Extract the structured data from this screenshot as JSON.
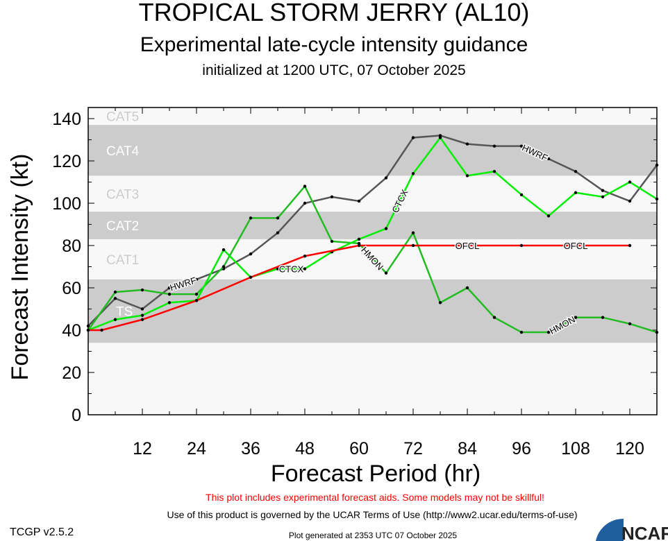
{
  "chart_data": {
    "type": "line",
    "title": "TROPICAL STORM JERRY (AL10)",
    "subtitle": "Experimental late-cycle intensity guidance",
    "init": "initialized at 1200 UTC, 07 October 2025",
    "xlabel": "Forecast Period (hr)",
    "ylabel": "Forecast Intensity (kt)",
    "xlim": [
      0,
      126
    ],
    "ylim": [
      0,
      140
    ],
    "xticks": [
      12,
      24,
      36,
      48,
      60,
      72,
      84,
      96,
      108,
      120
    ],
    "yticks": [
      0,
      20,
      40,
      60,
      80,
      100,
      120,
      140
    ],
    "bands": [
      {
        "label": "TS",
        "min": 34,
        "max": 64,
        "shade": true
      },
      {
        "label": "CAT1",
        "min": 64,
        "max": 83,
        "shade": false
      },
      {
        "label": "CAT2",
        "min": 83,
        "max": 96,
        "shade": true
      },
      {
        "label": "CAT3",
        "min": 96,
        "max": 113,
        "shade": false
      },
      {
        "label": "CAT4",
        "min": 113,
        "max": 137,
        "shade": true
      },
      {
        "label": "CAT5",
        "min": 137,
        "max": 140,
        "shade": false
      }
    ],
    "series": [
      {
        "name": "HWRF",
        "color": "#555555",
        "x": [
          0,
          6,
          12,
          18,
          24,
          30,
          36,
          42,
          48,
          54,
          60,
          66,
          72,
          78,
          84,
          90,
          96,
          102,
          108,
          114,
          120,
          126
        ],
        "values": [
          42,
          55,
          50,
          60,
          64,
          69,
          76,
          86,
          100,
          103,
          101,
          112,
          131,
          132,
          128,
          127,
          127,
          121,
          115,
          106,
          101,
          118
        ]
      },
      {
        "name": "HMON",
        "color": "#22bb22",
        "x": [
          0,
          6,
          12,
          18,
          24,
          30,
          36,
          42,
          48,
          54,
          60,
          66,
          72,
          78,
          84,
          90,
          96,
          102,
          108,
          114,
          120,
          126
        ],
        "values": [
          40,
          58,
          59,
          57,
          57,
          70,
          93,
          93,
          108,
          82,
          81,
          67,
          86,
          53,
          60,
          46,
          39,
          39,
          46,
          46,
          43,
          39
        ]
      },
      {
        "name": "CTCX",
        "color": "#00ee00",
        "x": [
          0,
          6,
          12,
          18,
          24,
          30,
          36,
          42,
          48,
          54,
          60,
          66,
          72,
          78,
          84,
          90,
          96,
          102,
          108,
          114,
          120,
          126
        ],
        "values": [
          40,
          45,
          47,
          53,
          54,
          78,
          65,
          69,
          69,
          77,
          83,
          88,
          114,
          131,
          113,
          115,
          104,
          94,
          105,
          103,
          110,
          102
        ]
      },
      {
        "name": "OFCL",
        "color": "#ff0000",
        "x": [
          0,
          3,
          12,
          24,
          36,
          48,
          60,
          72,
          96,
          120
        ],
        "values": [
          40,
          40,
          45,
          54,
          65,
          75,
          80,
          80,
          80,
          80
        ]
      }
    ]
  },
  "footer": {
    "warning": "This plot includes experimental forecast aids. Some models may not be skillful!",
    "terms": "Use of this product is governed by the UCAR Terms of Use (http://www2.ucar.edu/terms-of-use)",
    "version": "TCGP v2.5.2",
    "generated": "Plot generated at 2353 UTC   07 October 2025",
    "logo": "NCAR"
  }
}
